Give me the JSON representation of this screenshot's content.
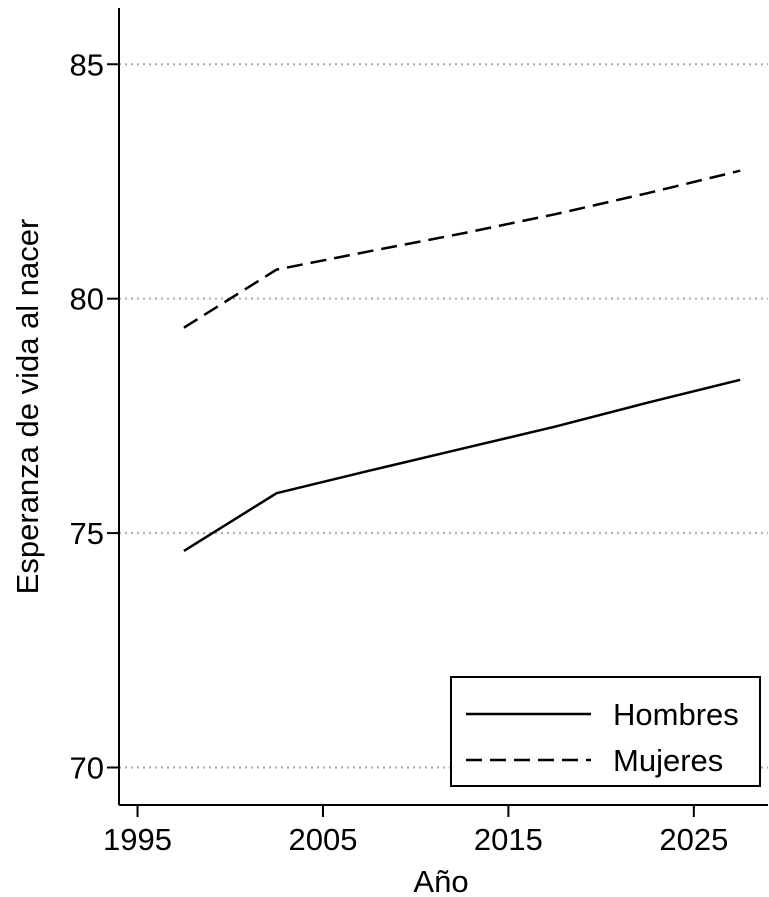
{
  "chart_data": {
    "type": "line",
    "xlabel": "Año",
    "ylabel": "Esperanza de vida al nacer",
    "xlim": [
      1994,
      2029
    ],
    "ylim": [
      69.2,
      86.2
    ],
    "xticks": [
      1995,
      2005,
      2015,
      2025
    ],
    "yticks": [
      70,
      75,
      80,
      85
    ],
    "grid": "horizontal dotted",
    "legend_position": "bottom-right",
    "series": [
      {
        "name": "Hombres",
        "style": "solid",
        "color": "#000000",
        "x": [
          1997.5,
          2002.5,
          2007.5,
          2012.5,
          2017.5,
          2022.5,
          2027.5
        ],
        "y": [
          74.62,
          75.85,
          76.33,
          76.8,
          77.27,
          77.78,
          78.27
        ]
      },
      {
        "name": "Mujeres",
        "style": "dashed",
        "color": "#000000",
        "x": [
          1997.5,
          2002.5,
          2007.5,
          2012.5,
          2017.5,
          2022.5,
          2027.5
        ],
        "y": [
          79.38,
          80.62,
          81.01,
          81.39,
          81.8,
          82.25,
          82.73
        ]
      }
    ]
  }
}
